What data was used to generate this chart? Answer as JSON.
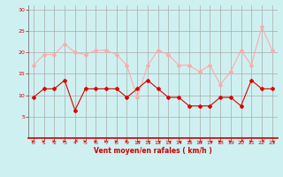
{
  "title": "",
  "xlabel": "Vent moyen/en rafales ( km/h )",
  "ylabel": "",
  "background_color": "#cff0f0",
  "grid_color": "#aaaaaa",
  "xlim": [
    -0.5,
    23.5
  ],
  "ylim": [
    0,
    31
  ],
  "yticks": [
    5,
    10,
    15,
    20,
    25,
    30
  ],
  "xticks": [
    0,
    1,
    2,
    3,
    4,
    5,
    6,
    7,
    8,
    9,
    10,
    11,
    12,
    13,
    14,
    15,
    16,
    17,
    18,
    19,
    20,
    21,
    22,
    23
  ],
  "x": [
    0,
    1,
    2,
    3,
    4,
    5,
    6,
    7,
    8,
    9,
    10,
    11,
    12,
    13,
    14,
    15,
    16,
    17,
    18,
    19,
    20,
    21,
    22,
    23
  ],
  "wind_mean": [
    9.5,
    11.5,
    11.5,
    13.5,
    6.5,
    11.5,
    11.5,
    11.5,
    11.5,
    9.5,
    11.5,
    13.5,
    11.5,
    9.5,
    9.5,
    7.5,
    7.5,
    7.5,
    9.5,
    9.5,
    7.5,
    13.5,
    11.5,
    11.5
  ],
  "wind_gust": [
    17,
    19.5,
    19.5,
    22,
    20,
    19.5,
    20.5,
    20.5,
    19.5,
    17,
    9.5,
    17,
    20.5,
    19.5,
    17,
    17,
    15.5,
    17,
    12.5,
    15.5,
    20.5,
    17,
    26,
    20.5
  ],
  "mean_color": "#dd0000",
  "gust_color": "#ffaaaa",
  "marker_size": 2,
  "line_width": 0.8,
  "xlabel_color": "#cc0000",
  "tick_color": "#cc0000",
  "wind_directions": [
    0,
    0,
    0,
    0,
    225,
    0,
    0,
    0,
    0,
    0,
    135,
    135,
    135,
    135,
    135,
    180,
    135,
    135,
    0,
    0,
    225,
    0,
    225,
    135
  ]
}
